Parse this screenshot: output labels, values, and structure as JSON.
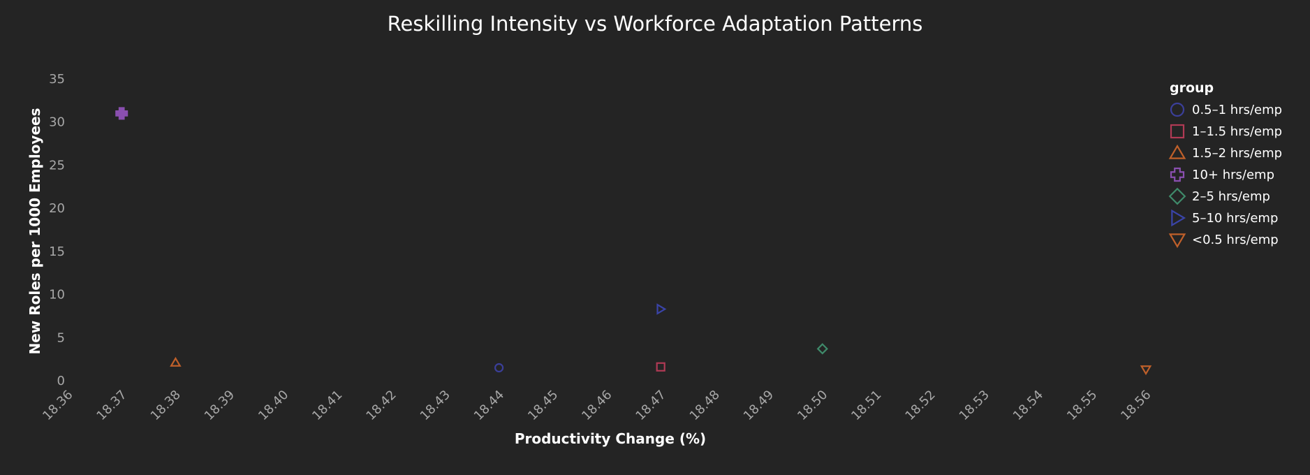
{
  "chart_data": {
    "type": "scatter",
    "title": "Reskilling Intensity vs Workforce Adaptation Patterns",
    "xlabel": "Productivity Change (%)",
    "ylabel": "New Roles per 1000 Employees",
    "xlim": [
      18.36,
      18.56
    ],
    "ylim": [
      0,
      35
    ],
    "x_ticks": [
      "18.36",
      "18.37",
      "18.38",
      "18.39",
      "18.40",
      "18.41",
      "18.42",
      "18.43",
      "18.44",
      "18.45",
      "18.46",
      "18.47",
      "18.48",
      "18.49",
      "18.50",
      "18.51",
      "18.52",
      "18.53",
      "18.54",
      "18.55",
      "18.56"
    ],
    "y_ticks": [
      "0",
      "5",
      "10",
      "15",
      "20",
      "25",
      "30",
      "35"
    ],
    "grid": false,
    "legend": {
      "title": "group",
      "position": "right"
    },
    "series": [
      {
        "name": "0.5–1 hrs/emp",
        "marker": "circle",
        "color": "#3b3f9a",
        "points": [
          {
            "x": 18.44,
            "y": 1.5
          }
        ]
      },
      {
        "name": "1–1.5 hrs/emp",
        "marker": "square",
        "color": "#b03a55",
        "points": [
          {
            "x": 18.47,
            "y": 1.6
          }
        ]
      },
      {
        "name": "1.5–2 hrs/emp",
        "marker": "triangle-up",
        "color": "#c0602a",
        "points": [
          {
            "x": 18.38,
            "y": 2.1
          }
        ]
      },
      {
        "name": "10+ hrs/emp",
        "marker": "cross",
        "color": "#8a4fb0",
        "points": [
          {
            "x": 18.37,
            "y": 31.0
          }
        ]
      },
      {
        "name": "2–5 hrs/emp",
        "marker": "diamond",
        "color": "#3f8a6a",
        "points": [
          {
            "x": 18.5,
            "y": 3.7
          }
        ]
      },
      {
        "name": "5–10 hrs/emp",
        "marker": "triangle-right",
        "color": "#3a44a8",
        "points": [
          {
            "x": 18.47,
            "y": 8.3
          }
        ]
      },
      {
        "name": "<0.5 hrs/emp",
        "marker": "triangle-down",
        "color": "#c0602a",
        "points": [
          {
            "x": 18.56,
            "y": 1.3
          }
        ]
      }
    ]
  }
}
